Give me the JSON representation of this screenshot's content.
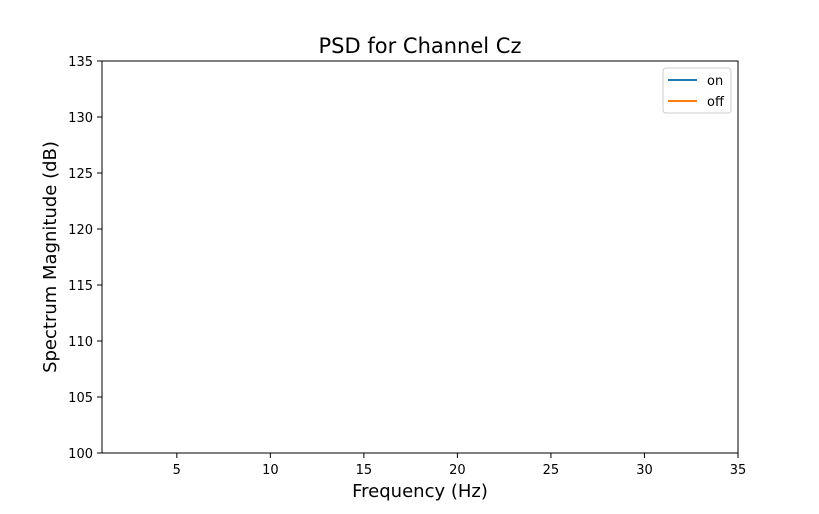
{
  "chart_data": {
    "type": "line",
    "title": "PSD for Channel Cz",
    "xlabel": "Frequency (Hz)",
    "ylabel": "Spectrum Magnitude (dB)",
    "xlim": [
      1,
      35
    ],
    "ylim": [
      100,
      135
    ],
    "xticks": [
      5,
      10,
      15,
      20,
      25,
      30,
      35
    ],
    "yticks": [
      100,
      105,
      110,
      115,
      120,
      125,
      130,
      135
    ],
    "grid": false,
    "legend_position": "top-right",
    "series": [
      {
        "name": "on",
        "color": "#1f77b4",
        "x": [],
        "y": []
      },
      {
        "name": "off",
        "color": "#ff7f0e",
        "x": [],
        "y": []
      }
    ]
  }
}
